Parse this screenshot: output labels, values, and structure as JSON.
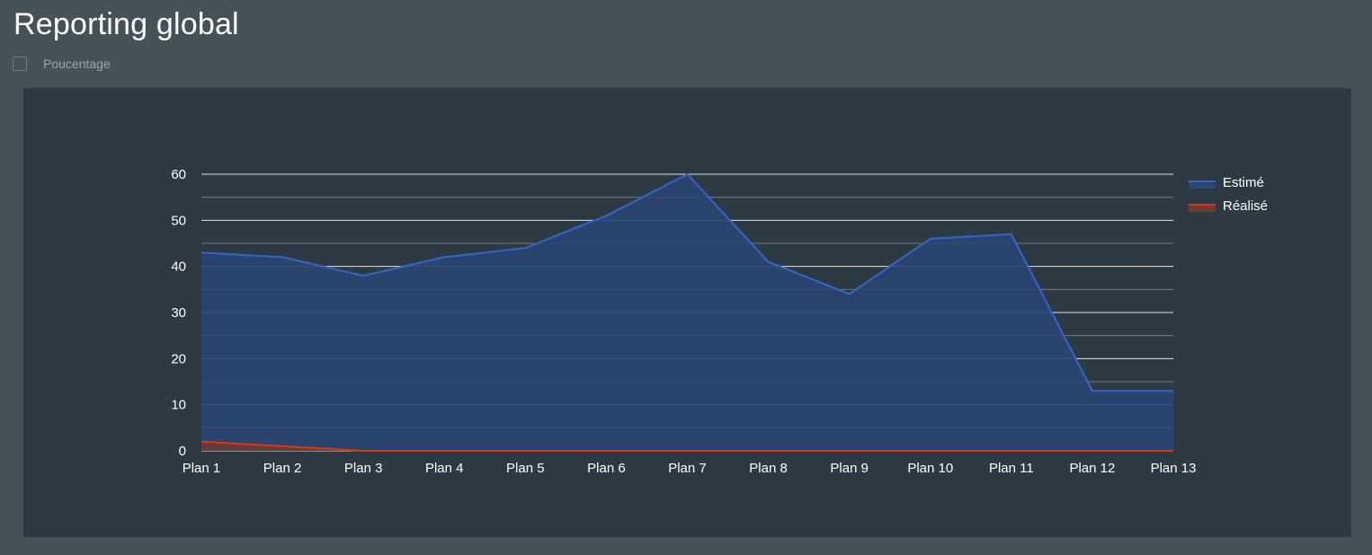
{
  "header": {
    "title": "Reporting global"
  },
  "controls": {
    "percentage_label": "Poucentage",
    "percentage_checked": false
  },
  "colors": {
    "page_background": "#455359",
    "panel_background": "#2d3a43",
    "estime_line": "#3366cc",
    "estime_fill": "#2b4672",
    "realise_line": "#dc3912",
    "realise_fill": "#6b3a30",
    "gridline": "#ffffff",
    "minor_gridline": "#8a949a",
    "text": "#ffffff"
  },
  "chart_data": {
    "type": "area",
    "title": "",
    "xlabel": "",
    "ylabel": "",
    "categories": [
      "Plan 1",
      "Plan 2",
      "Plan 3",
      "Plan 4",
      "Plan 5",
      "Plan 6",
      "Plan 7",
      "Plan 8",
      "Plan 9",
      "Plan 10",
      "Plan 11",
      "Plan 12",
      "Plan 13"
    ],
    "series": [
      {
        "name": "Estimé",
        "values": [
          43,
          42,
          38,
          42,
          44,
          51,
          60,
          41,
          34,
          46,
          47,
          13,
          13
        ],
        "color": "#3366cc"
      },
      {
        "name": "Réalisé",
        "values": [
          2,
          1,
          0,
          0,
          0,
          0,
          0,
          0,
          0,
          0,
          0,
          0,
          0
        ],
        "color": "#dc3912"
      }
    ],
    "ylim": [
      0,
      60
    ],
    "yticks": [
      0,
      10,
      20,
      30,
      40,
      50,
      60
    ],
    "grid": true,
    "legend": "right"
  }
}
